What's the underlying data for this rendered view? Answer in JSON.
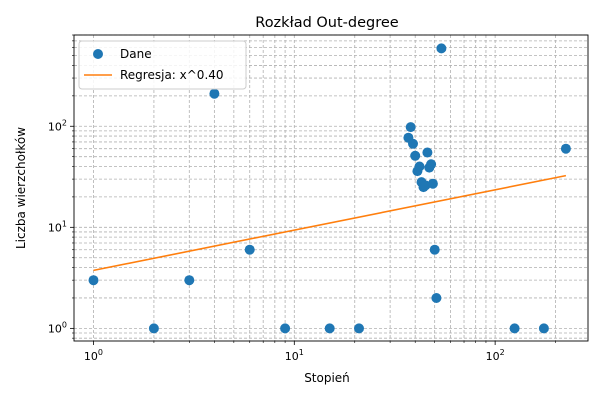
{
  "chart_data": {
    "type": "scatter",
    "title": "Rozkład Out-degree",
    "xlabel": "Stopień",
    "ylabel": "Liczba wierzchołków",
    "xscale": "log",
    "yscale": "log",
    "xlim": [
      0.8,
      290
    ],
    "ylim": [
      0.75,
      800
    ],
    "grid": true,
    "legend_position": "top-left",
    "x_ticks": [
      {
        "value": 1,
        "base": "10",
        "exp": "0"
      },
      {
        "value": 10,
        "base": "10",
        "exp": "1"
      },
      {
        "value": 100,
        "base": "10",
        "exp": "2"
      }
    ],
    "y_ticks": [
      {
        "value": 1,
        "base": "10",
        "exp": "0"
      },
      {
        "value": 10,
        "base": "10",
        "exp": "1"
      },
      {
        "value": 100,
        "base": "10",
        "exp": "2"
      }
    ],
    "series": [
      {
        "name": "Dane",
        "kind": "scatter",
        "color": "#1f77b4",
        "points": [
          {
            "x": 1,
            "y": 3
          },
          {
            "x": 2,
            "y": 1
          },
          {
            "x": 3,
            "y": 3
          },
          {
            "x": 4,
            "y": 210
          },
          {
            "x": 6,
            "y": 6
          },
          {
            "x": 9,
            "y": 1
          },
          {
            "x": 15,
            "y": 1
          },
          {
            "x": 21,
            "y": 1
          },
          {
            "x": 37,
            "y": 77
          },
          {
            "x": 38,
            "y": 98
          },
          {
            "x": 39,
            "y": 67
          },
          {
            "x": 40,
            "y": 51
          },
          {
            "x": 41,
            "y": 36
          },
          {
            "x": 42,
            "y": 40
          },
          {
            "x": 43,
            "y": 28
          },
          {
            "x": 44,
            "y": 25
          },
          {
            "x": 45,
            "y": 26
          },
          {
            "x": 46,
            "y": 55
          },
          {
            "x": 47,
            "y": 39
          },
          {
            "x": 48,
            "y": 42
          },
          {
            "x": 49,
            "y": 27
          },
          {
            "x": 50,
            "y": 6
          },
          {
            "x": 51,
            "y": 2
          },
          {
            "x": 54,
            "y": 590
          },
          {
            "x": 125,
            "y": 1
          },
          {
            "x": 175,
            "y": 1
          },
          {
            "x": 225,
            "y": 60
          }
        ]
      },
      {
        "name": "Regresja: x^0.40",
        "kind": "line",
        "color": "#ff7f0e",
        "points": [
          {
            "x": 1,
            "y": 3.75
          },
          {
            "x": 225,
            "y": 32.5
          }
        ]
      }
    ]
  }
}
